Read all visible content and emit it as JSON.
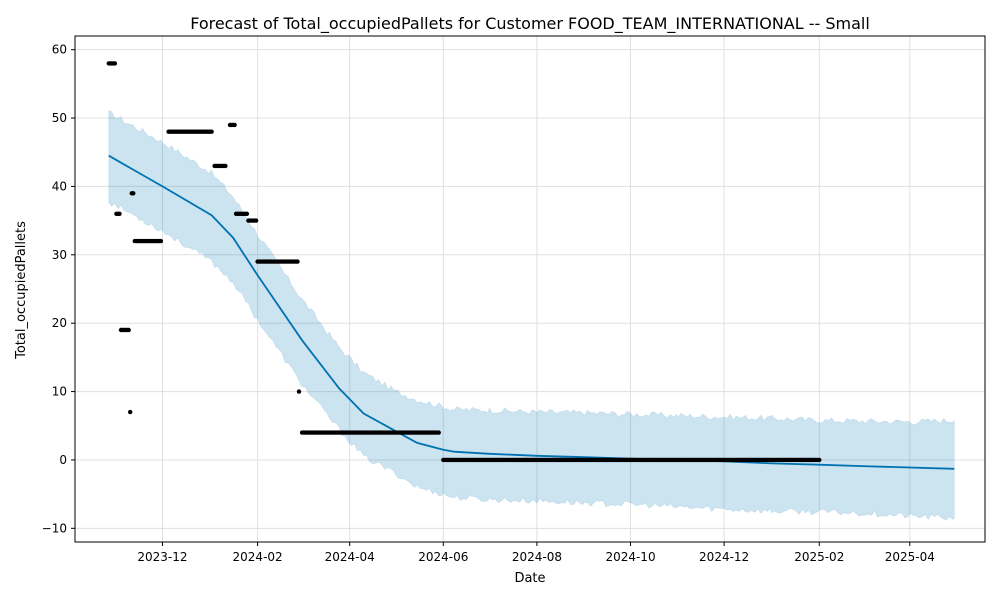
{
  "chart_data": {
    "type": "line",
    "title": "Forecast of Total_occupiedPallets for Customer FOOD_TEAM_INTERNATIONAL -- Small",
    "xlabel": "Date",
    "ylabel": "Total_occupiedPallets",
    "x_axis_type": "date",
    "xlim": [
      "2023-10-05",
      "2025-05-20"
    ],
    "ylim": [
      -12,
      62
    ],
    "grid": true,
    "x_ticks": [
      "2023-12",
      "2024-02",
      "2024-04",
      "2024-06",
      "2024-08",
      "2024-10",
      "2024-12",
      "2025-02",
      "2025-04"
    ],
    "y_ticks": [
      -10,
      0,
      10,
      20,
      30,
      40,
      50,
      60
    ],
    "colors": {
      "forecast_line": "#0072b2",
      "interval_fill": "#0072b2",
      "observed_points": "#000000",
      "grid": "#e0e0e0"
    },
    "series": [
      {
        "kind": "forecast",
        "x": [
          "2023-10-27",
          "2023-12-01",
          "2024-01-02",
          "2024-01-16",
          "2024-02-01",
          "2024-03-01",
          "2024-03-25",
          "2024-04-10",
          "2024-05-01",
          "2024-05-15",
          "2024-06-01",
          "2024-06-08",
          "2024-07-01",
          "2024-08-01",
          "2024-09-01",
          "2024-10-01",
          "2024-11-01",
          "2024-12-01",
          "2025-01-01",
          "2025-02-01",
          "2025-03-01",
          "2025-04-01",
          "2025-04-30"
        ],
        "y": [
          44.5,
          40.0,
          35.8,
          32.5,
          27.0,
          17.5,
          10.5,
          6.8,
          4.2,
          2.5,
          1.5,
          1.2,
          0.9,
          0.6,
          0.4,
          0.2,
          0.0,
          -0.2,
          -0.5,
          -0.7,
          -0.9,
          -1.1,
          -1.3
        ]
      },
      {
        "kind": "interval_upper",
        "x": [
          "2023-10-27",
          "2023-12-01",
          "2024-01-02",
          "2024-01-16",
          "2024-02-01",
          "2024-03-01",
          "2024-03-25",
          "2024-04-10",
          "2024-05-01",
          "2024-05-15",
          "2024-06-01",
          "2024-06-08",
          "2024-07-01",
          "2024-08-01",
          "2024-09-01",
          "2024-10-01",
          "2024-11-01",
          "2024-12-01",
          "2025-01-01",
          "2025-02-01",
          "2025-03-01",
          "2025-04-01",
          "2025-04-30"
        ],
        "y": [
          50.8,
          46.5,
          42.0,
          38.5,
          33.0,
          23.5,
          16.5,
          12.8,
          10.0,
          8.8,
          7.8,
          7.4,
          7.3,
          7.0,
          6.9,
          6.7,
          6.5,
          6.3,
          6.1,
          5.8,
          5.7,
          5.6,
          5.8
        ]
      },
      {
        "kind": "interval_lower",
        "x": [
          "2023-10-27",
          "2023-12-01",
          "2024-01-02",
          "2024-01-16",
          "2024-02-01",
          "2024-03-01",
          "2024-03-25",
          "2024-04-10",
          "2024-05-01",
          "2024-05-15",
          "2024-06-01",
          "2024-06-08",
          "2024-07-01",
          "2024-08-01",
          "2024-09-01",
          "2024-10-01",
          "2024-11-01",
          "2024-12-01",
          "2025-01-01",
          "2025-02-01",
          "2025-03-01",
          "2025-04-01",
          "2025-04-30"
        ],
        "y": [
          37.8,
          33.5,
          29.0,
          26.0,
          20.5,
          11.0,
          4.5,
          0.5,
          -2.0,
          -4.0,
          -5.0,
          -5.5,
          -5.8,
          -6.0,
          -6.3,
          -6.5,
          -6.9,
          -7.2,
          -7.5,
          -7.6,
          -7.8,
          -8.2,
          -8.5
        ]
      },
      {
        "kind": "observed",
        "segments": [
          {
            "start": "2023-10-27",
            "end": "2023-10-31",
            "y": 58
          },
          {
            "start": "2023-11-01",
            "end": "2023-11-03",
            "y": 36
          },
          {
            "start": "2023-11-04",
            "end": "2023-11-09",
            "y": 19
          },
          {
            "start": "2023-11-10",
            "end": "2023-11-10",
            "y": 7
          },
          {
            "start": "2023-11-11",
            "end": "2023-11-12",
            "y": 39
          },
          {
            "start": "2023-11-13",
            "end": "2023-11-30",
            "y": 32
          },
          {
            "start": "2023-12-05",
            "end": "2024-01-02",
            "y": 48
          },
          {
            "start": "2024-01-04",
            "end": "2024-01-11",
            "y": 43
          },
          {
            "start": "2024-01-14",
            "end": "2024-01-17",
            "y": 49
          },
          {
            "start": "2024-01-18",
            "end": "2024-01-25",
            "y": 36
          },
          {
            "start": "2024-01-26",
            "end": "2024-01-31",
            "y": 35
          },
          {
            "start": "2024-02-01",
            "end": "2024-02-27",
            "y": 29
          },
          {
            "start": "2024-02-28",
            "end": "2024-02-28",
            "y": 10
          },
          {
            "start": "2024-03-01",
            "end": "2024-05-29",
            "y": 4
          },
          {
            "start": "2024-06-01",
            "end": "2025-02-01",
            "y": 0
          }
        ]
      }
    ]
  }
}
